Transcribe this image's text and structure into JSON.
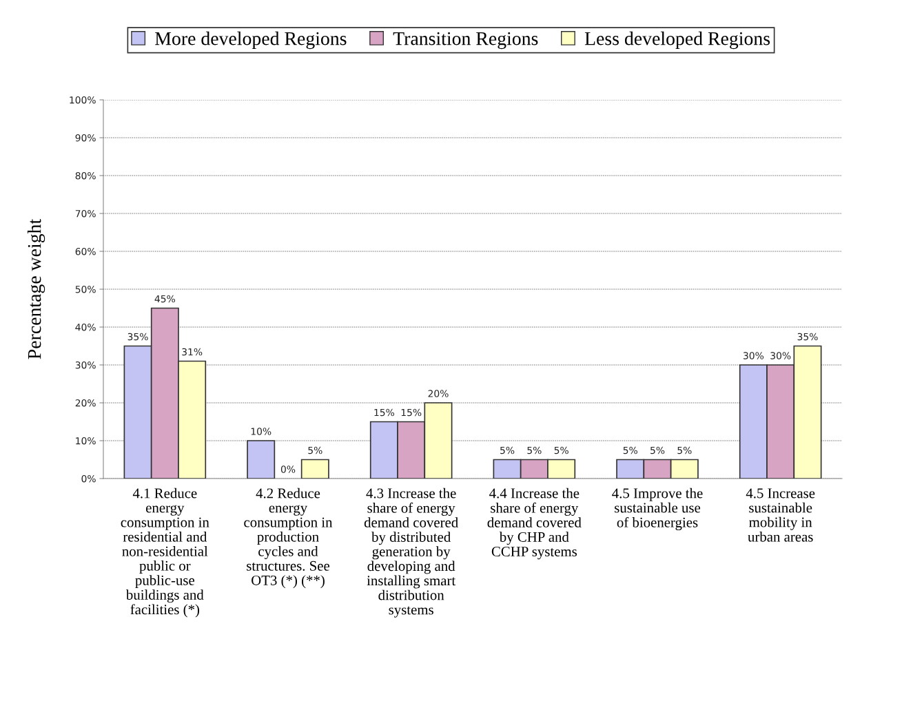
{
  "chart_data": {
    "type": "bar",
    "ylabel": "Percentage weight",
    "categories": [
      "4.1 Reduce energy consumption in residential and non-residential public or public-use buildings and facilities (*)",
      "4.2 Reduce energy consumption in production cycles and structures. See OT3 (*) (**)",
      "4.3 Increase the share of energy demand covered by distributed generation by developing and installing smart distribution systems",
      "4.4 Increase the share of energy demand covered by CHP and CCHP systems",
      "4.5 Improve the sustainable use of bioenergies",
      "4.5 Increase sustainable mobility in urban areas"
    ],
    "series": [
      {
        "name": "More developed Regions",
        "color": "#c4c4f4",
        "values": [
          35,
          10,
          15,
          5,
          5,
          30
        ],
        "value_labels": [
          "35%",
          "10%",
          "15%",
          "5%",
          "5%",
          "30%"
        ]
      },
      {
        "name": "Transition Regions",
        "color": "#d8a4c4",
        "values": [
          45,
          0,
          15,
          5,
          5,
          30
        ],
        "value_labels": [
          "45%",
          "0%",
          "15%",
          "5%",
          "5%",
          "30%"
        ]
      },
      {
        "name": "Less developed Regions",
        "color": "#ffffc4",
        "values": [
          31,
          5,
          20,
          5,
          5,
          35
        ],
        "value_labels": [
          "31%",
          "5%",
          "20%",
          "5%",
          "5%",
          "35%"
        ]
      }
    ],
    "ylim": [
      0,
      100
    ],
    "yticks": [
      {
        "value": 0,
        "label": "0%"
      },
      {
        "value": 10,
        "label": "10%"
      },
      {
        "value": 20,
        "label": "20%"
      },
      {
        "value": 30,
        "label": "30%"
      },
      {
        "value": 40,
        "label": "40%"
      },
      {
        "value": 50,
        "label": "50%"
      },
      {
        "value": 60,
        "label": "60%"
      },
      {
        "value": 70,
        "label": "70%"
      },
      {
        "value": 80,
        "label": "80%"
      },
      {
        "value": 90,
        "label": "90%"
      },
      {
        "value": 100,
        "label": "100%"
      }
    ],
    "grid": "y",
    "legend": "top"
  }
}
